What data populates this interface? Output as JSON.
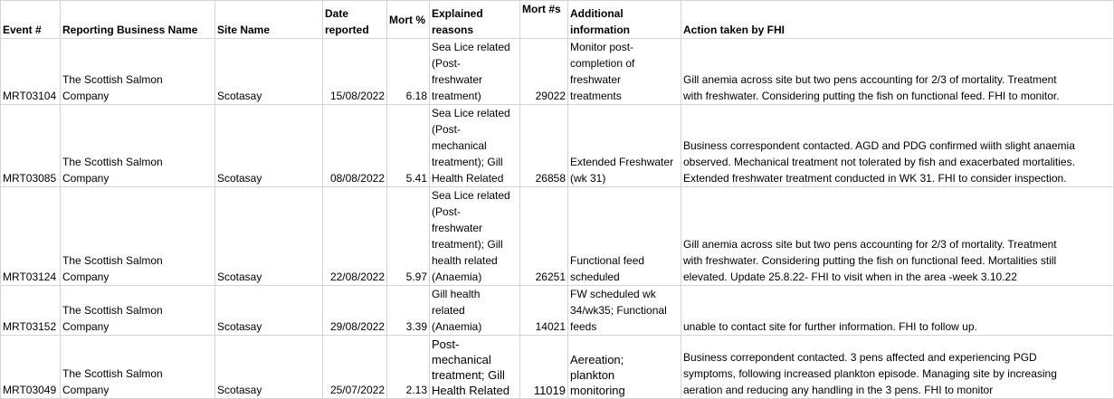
{
  "headers": {
    "event": "Event #",
    "business": "Reporting Business Name",
    "site": "Site Name",
    "date": "Date\nreported",
    "mort_pct": "Mort %",
    "reasons": "Explained\nreasons",
    "mort_n": "Mort #s",
    "additional": "Additional\ninformation",
    "action": "Action taken by FHI"
  },
  "rows": [
    {
      "event": "MRT03104",
      "business": "The Scottish Salmon\nCompany",
      "site": "Scotasay",
      "date": "15/08/2022",
      "mort_pct": "6.18",
      "reasons": "Sea Lice related\n(Post-\nfreshwater\ntreatment)",
      "mort_n": "29022",
      "additional": "Monitor post-\ncompletion of\nfreshwater\ntreatments",
      "action": "Gill anemia across site but two pens accounting for 2/3 of mortality. Treatment\nwith freshwater. Considering putting the fish on functional feed. FHI to monitor."
    },
    {
      "event": "MRT03085",
      "business": "The Scottish Salmon\nCompany",
      "site": "Scotasay",
      "date": "08/08/2022",
      "mort_pct": "5.41",
      "reasons": "Sea Lice related\n(Post-\nmechanical\ntreatment); Gill\nHealth Related",
      "mort_n": "26858",
      "additional": "Extended Freshwater\n(wk 31)",
      "action": "Business correspondent contacted. AGD and PDG confirmed wiith slight anaemia\nobserved. Mechanical treatment not tolerated by fish and exacerbated mortalities.\nExtended freshwater treatment conducted in WK 31. FHI to consider inspection."
    },
    {
      "event": "MRT03124",
      "business": "The Scottish Salmon\nCompany",
      "site": "Scotasay",
      "date": "22/08/2022",
      "mort_pct": "5.97",
      "reasons": "Sea Lice related\n(Post-\nfreshwater\ntreatment); Gill\nhealth related\n(Anaemia)",
      "mort_n": "26251",
      "additional": "Functional feed\nscheduled",
      "action": "Gill anemia across site but two pens accounting for 2/3 of mortality. Treatment\nwith freshwater. Considering putting the fish on functional feed. Mortalities still\nelevated. Update 25.8.22- FHI to visit when in the area -week 3.10.22"
    },
    {
      "event": "MRT03152",
      "business": "The Scottish Salmon\nCompany",
      "site": "Scotasay",
      "date": "29/08/2022",
      "mort_pct": "3.39",
      "reasons": "Gill health\nrelated\n(Anaemia)",
      "mort_n": "14021",
      "additional": "FW scheduled wk\n34/wk35; Functional\nfeeds",
      "action": "unable to contact site for further information. FHI to follow up."
    },
    {
      "event": "MRT03049",
      "business": "The Scottish Salmon\nCompany",
      "site": "Scotasay",
      "date": "25/07/2022",
      "mort_pct": "2.13",
      "reasons": "Post-\nmechanical\ntreatment; Gill\nHealth Related",
      "mort_n": "11019",
      "additional": "Aereation;\nplankton\nmonitoring",
      "action": "Business correpondent contacted. 3 pens affected and experiencing PGD\nsymptoms, following increased plankton episode. Managing site by increasing\naeration and reducing any handling in the 3 pens. FHI to monitor"
    }
  ]
}
